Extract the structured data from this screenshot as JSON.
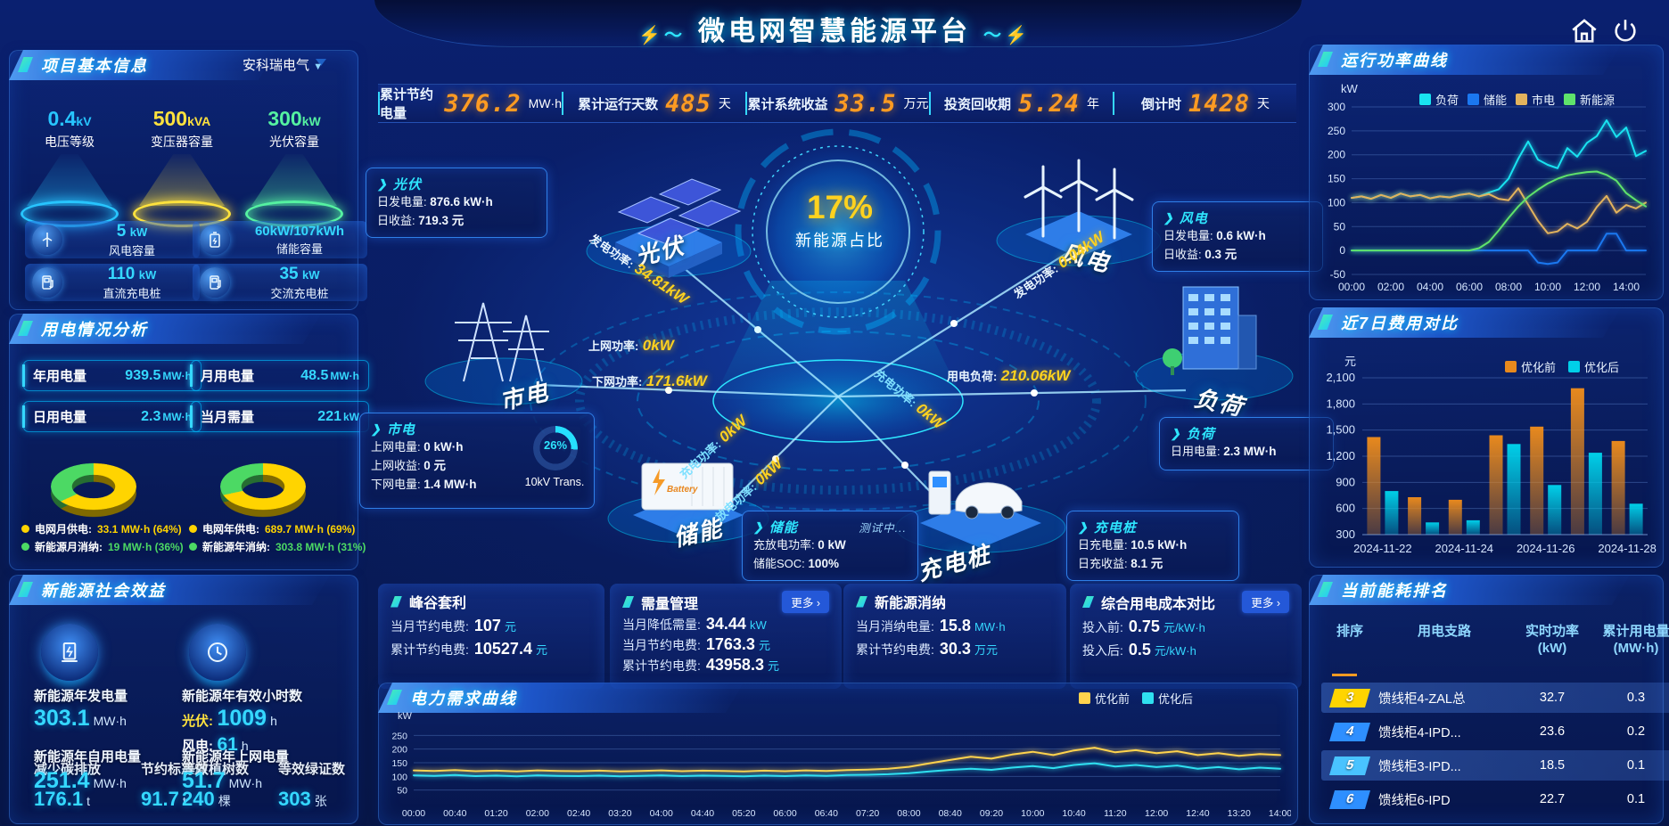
{
  "app": {
    "title": "微电网智慧能源平台"
  },
  "topbar": {
    "stats": [
      {
        "label": "累计节约电量",
        "value": "376.2",
        "unit": "MW·h"
      },
      {
        "label": "累计运行天数",
        "value": "485",
        "unit": "天"
      },
      {
        "label": "累计系统收益",
        "value": "33.5",
        "unit": "万元"
      },
      {
        "label": "投资回收期",
        "value": "5.24",
        "unit": "年"
      },
      {
        "label": "倒计时",
        "value": "1428",
        "unit": "天"
      }
    ]
  },
  "project_panel": {
    "title": "项目基本信息",
    "company": "安科瑞电气",
    "spotlights": [
      {
        "value": "0.4",
        "unit": "kV",
        "label": "电压等级",
        "color": "#27c5ff"
      },
      {
        "value": "500",
        "unit": "kVA",
        "label": "变压器容量",
        "color": "#ffe23d"
      },
      {
        "value": "300",
        "unit": "kW",
        "label": "光伏容量",
        "color": "#55f2a1"
      }
    ],
    "cards": [
      {
        "icon": "wind-turbine-icon",
        "value": "5",
        "unit": "kW",
        "label": "风电容量"
      },
      {
        "icon": "battery-icon",
        "value": "60kW/107kWh",
        "unit": "",
        "label": "储能容量"
      },
      {
        "icon": "dc-charger-icon",
        "value": "110",
        "unit": "kW",
        "label": "直流充电桩"
      },
      {
        "icon": "ac-charger-icon",
        "value": "35",
        "unit": "kW",
        "label": "交流充电桩"
      }
    ]
  },
  "usage_panel": {
    "title": "用电情况分析",
    "stats": [
      {
        "label": "年用电量",
        "value": "939.5",
        "unit": "MW·h"
      },
      {
        "label": "月用电量",
        "value": "48.5",
        "unit": "MW·h"
      },
      {
        "label": "日用电量",
        "value": "2.3",
        "unit": "MW·h"
      },
      {
        "label": "当月需量",
        "value": "221",
        "unit": "kW"
      }
    ],
    "donuts": [
      {
        "pct": 64,
        "color_main": "#ffd400",
        "color_sub": "#4cd964",
        "legend": [
          {
            "label": "电网月供电:",
            "value": "33.1 MW·h (64%)",
            "dot": "#ffd400"
          },
          {
            "label": "新能源月消纳:",
            "value": "19 MW·h (36%)",
            "dot": "#4cd964"
          }
        ]
      },
      {
        "pct": 69,
        "color_main": "#ffd400",
        "color_sub": "#4cd964",
        "legend": [
          {
            "label": "电网年供电:",
            "value": "689.7 MW·h (69%)",
            "dot": "#ffd400"
          },
          {
            "label": "新能源年消纳:",
            "value": "303.8 MW·h (31%)",
            "dot": "#4cd964"
          }
        ]
      }
    ]
  },
  "benefit_panel": {
    "title": "新能源社会效益",
    "gen": {
      "label": "新能源年发电量",
      "value": "303.1",
      "unit": "MW·h"
    },
    "hours": {
      "label": "新能源年有效小时数",
      "pv_label": "光伏:",
      "pv_value": "1009",
      "pv_unit": "h",
      "wind_label": "风电:",
      "wind_value": "61",
      "wind_unit": "h"
    },
    "self_use": {
      "label": "新能源年自用电量",
      "value": "251.4",
      "unit": "MW·h"
    },
    "to_grid": {
      "label": "新能源年上网电量",
      "value": "51.7",
      "unit": "MW·h"
    },
    "co2": {
      "label": "减少碳排放",
      "value": "176.1",
      "unit": "t"
    },
    "coal": {
      "label": "节约标准煤",
      "value": "91.7",
      "unit": "t"
    },
    "trees": {
      "label": "等效植树数",
      "value": "240",
      "unit": "棵"
    },
    "certs": {
      "label": "等效绿证数",
      "value": "303",
      "unit": "张"
    }
  },
  "diagram": {
    "center": {
      "value": "17%",
      "label": "新能源占比"
    },
    "nodes": {
      "pv": "光伏",
      "wind": "风电",
      "grid": "市电",
      "storage": "储能",
      "charger": "充电桩",
      "load": "负荷"
    },
    "flows": {
      "pv_gen": {
        "label": "发电功率:",
        "value": "34.81kW"
      },
      "wind_gen": {
        "label": "发电功率:",
        "value": "0.04kW"
      },
      "to_grid": {
        "label": "上网功率:",
        "value": "0kW"
      },
      "from_grid": {
        "label": "下网功率:",
        "value": "171.6kW"
      },
      "load": {
        "label": "用电负荷:",
        "value": "210.06kW"
      },
      "st_charge": {
        "label": "充电功率:",
        "value": "0kW"
      },
      "st_discharge": {
        "label": "放电功率:",
        "value": "0kW"
      },
      "ev_charge": {
        "label": "充电功率:",
        "value": "0kW"
      }
    },
    "cards": {
      "pv": {
        "title": "光伏",
        "lines": [
          {
            "label": "日发电量:",
            "value": "876.6 kW·h"
          },
          {
            "label": "日收益:",
            "value": "719.3 元"
          }
        ]
      },
      "wind": {
        "title": "风电",
        "lines": [
          {
            "label": "日发电量:",
            "value": "0.6 kW·h"
          },
          {
            "label": "日收益:",
            "value": "0.3 元"
          }
        ]
      },
      "grid": {
        "title": "市电",
        "lines": [
          {
            "label": "上网电量:",
            "value": "0 kW·h"
          },
          {
            "label": "上网收益:",
            "value": "0 元"
          },
          {
            "label": "下网电量:",
            "value": "1.4 MW·h"
          }
        ],
        "trans_pct": "26%",
        "trans_label": "10kV Trans."
      },
      "storage": {
        "title": "储能",
        "badge": "测试中...",
        "lines": [
          {
            "label": "充放电功率:",
            "value": "0 kW"
          },
          {
            "label": "储能SOC:",
            "value": "100%"
          }
        ]
      },
      "charger": {
        "title": "充电桩",
        "lines": [
          {
            "label": "日充电量:",
            "value": "10.5 kW·h"
          },
          {
            "label": "日充收益:",
            "value": "8.1 元"
          }
        ]
      },
      "load": {
        "title": "负荷",
        "lines": [
          {
            "label": "日用电量:",
            "value": "2.3 MW·h"
          }
        ]
      }
    }
  },
  "bottom_cards": [
    {
      "title": "峰谷套利",
      "lines": [
        {
          "label": "当月节约电费:",
          "value": "107",
          "unit": "元"
        },
        {
          "label": "累计节约电费:",
          "value": "10527.4",
          "unit": "元"
        }
      ]
    },
    {
      "title": "需量管理",
      "more": "更多 ›",
      "lines": [
        {
          "label": "当月降低需量:",
          "value": "34.44",
          "unit": "kW"
        },
        {
          "label": "当月节约电费:",
          "value": "1763.3",
          "unit": "元"
        },
        {
          "label": "累计节约电费:",
          "value": "43958.3",
          "unit": "元"
        }
      ]
    },
    {
      "title": "新能源消纳",
      "lines": [
        {
          "label": "当月消纳电量:",
          "value": "15.8",
          "unit": "MW·h"
        },
        {
          "label": "累计节约电费:",
          "value": "30.3",
          "unit": "万元"
        }
      ]
    },
    {
      "title": "综合用电成本对比",
      "more": "更多 ›",
      "lines": [
        {
          "label": "投入前:",
          "value": "0.75",
          "unit": "元/kW·h"
        },
        {
          "label": "投入后:",
          "value": "0.5",
          "unit": "元/kW·h"
        }
      ]
    }
  ],
  "power_chart": {
    "type": "line",
    "title": "运行功率曲线",
    "y_label": "kW",
    "y_min": -50,
    "y_max": 300,
    "y_ticks": [
      300,
      250,
      200,
      150,
      100,
      50,
      0,
      -50
    ],
    "x_labels": [
      "00:00",
      "02:00",
      "04:00",
      "06:00",
      "08:00",
      "10:00",
      "12:00",
      "14:00"
    ],
    "x_steps_per_label": 4,
    "series": [
      {
        "name": "负荷",
        "color": "#19e3f0",
        "values": [
          110,
          113,
          108,
          116,
          110,
          119,
          113,
          116,
          109,
          113,
          111,
          116,
          119,
          113,
          121,
          128,
          150,
          192,
          228,
          190,
          179,
          172,
          214,
          196,
          225,
          239,
          272,
          237,
          257,
          197,
          208
        ]
      },
      {
        "name": "储能",
        "color": "#1b78f0",
        "values": [
          0,
          0,
          0,
          0,
          0,
          0,
          0,
          0,
          0,
          0,
          0,
          0,
          0,
          0,
          0,
          0,
          0,
          0,
          0,
          -25,
          -28,
          -25,
          0,
          0,
          0,
          0,
          35,
          35,
          0,
          0,
          0
        ]
      },
      {
        "name": "市电",
        "color": "#e3b35d",
        "values": [
          110,
          113,
          108,
          116,
          110,
          119,
          113,
          116,
          109,
          113,
          111,
          116,
          119,
          113,
          118,
          108,
          105,
          130,
          96,
          62,
          36,
          40,
          56,
          46,
          60,
          91,
          114,
          79,
          95,
          88,
          100
        ]
      },
      {
        "name": "新能源",
        "color": "#5fe36b",
        "values": [
          0,
          0,
          0,
          0,
          0,
          0,
          0,
          0,
          0,
          0,
          0,
          0,
          0,
          5,
          18,
          42,
          68,
          92,
          112,
          127,
          140,
          150,
          157,
          161,
          164,
          165,
          158,
          146,
          120,
          105,
          92
        ]
      }
    ]
  },
  "cost_chart": {
    "type": "bar",
    "title": "近7日费用对比",
    "y_label": "元",
    "y_min": 300,
    "y_max": 2100,
    "y_ticks": [
      2100,
      1800,
      1500,
      1200,
      900,
      600,
      300
    ],
    "y_tick_labels": [
      "2,100",
      "1,800",
      "1,500",
      "1,200",
      "900",
      "600",
      "300"
    ],
    "categories": [
      "2024-11-22",
      "2024-11-23",
      "2024-11-24",
      "2024-11-25",
      "2024-11-26",
      "2024-11-27",
      "2024-11-28"
    ],
    "x_tick_idx": [
      0,
      2,
      4,
      6
    ],
    "x_tick_labels": [
      "2024-11-22",
      "2024-11-24",
      "2024-11-26",
      "2024-11-28"
    ],
    "series": [
      {
        "name": "优化前",
        "color": "#e8891d",
        "values": [
          1420,
          730,
          700,
          1440,
          1540,
          1980,
          1375
        ]
      },
      {
        "name": "优化后",
        "color": "#00cfe8",
        "values": [
          800,
          440,
          465,
          1340,
          870,
          1240,
          655
        ]
      }
    ]
  },
  "ranking_panel": {
    "title": "当前能耗排名",
    "headers": {
      "rank": "排序",
      "branch": "用电支路",
      "power_1": "实时功率",
      "power_2": "(kW)",
      "energy_1": "累计用电量",
      "energy_2": "(MW·h)"
    },
    "rows": [
      {
        "rank": "3",
        "branch": "馈线柜4-ZAL总",
        "power": "32.7",
        "energy": "0.3",
        "badge": "#ffd400"
      },
      {
        "rank": "4",
        "branch": "馈线柜4-IPD...",
        "power": "23.6",
        "energy": "0.2",
        "badge": "#2e8fff"
      },
      {
        "rank": "5",
        "branch": "馈线柜3-IPD...",
        "power": "18.5",
        "energy": "0.1",
        "badge": "#49c3ff"
      },
      {
        "rank": "6",
        "branch": "馈线柜6-IPD",
        "power": "22.7",
        "energy": "0.1",
        "badge": "#2e8fff"
      }
    ]
  },
  "demand_chart": {
    "type": "line",
    "title": "电力需求曲线",
    "y_label": "kW",
    "y_min": 0,
    "y_max": 300,
    "y_ticks": [
      250,
      200,
      150,
      100,
      50
    ],
    "x_labels": [
      "00:00",
      "00:40",
      "01:20",
      "02:00",
      "02:40",
      "03:20",
      "04:00",
      "04:40",
      "05:20",
      "06:00",
      "06:40",
      "07:20",
      "08:00",
      "08:40",
      "09:20",
      "10:00",
      "10:40",
      "11:20",
      "12:00",
      "12:40",
      "13:20",
      "14:00"
    ],
    "x_steps_per_label": 2,
    "series": [
      {
        "name": "优化前",
        "color": "#ffd34d",
        "values": [
          122,
          120,
          123,
          119,
          121,
          118,
          122,
          120,
          119,
          121,
          118,
          120,
          122,
          119,
          121,
          120,
          118,
          121,
          119,
          122,
          120,
          123,
          125,
          128,
          135,
          148,
          160,
          172,
          165,
          180,
          190,
          178,
          195,
          205,
          188,
          196,
          185,
          192,
          178,
          185,
          175,
          182,
          178
        ]
      },
      {
        "name": "优化后",
        "color": "#2fe0f0",
        "values": [
          104,
          102,
          105,
          101,
          103,
          100,
          104,
          102,
          101,
          103,
          100,
          102,
          104,
          101,
          103,
          102,
          100,
          103,
          101,
          104,
          102,
          105,
          106,
          108,
          112,
          118,
          124,
          128,
          124,
          132,
          138,
          130,
          142,
          148,
          136,
          142,
          134,
          140,
          128,
          134,
          126,
          132,
          128
        ]
      }
    ]
  }
}
